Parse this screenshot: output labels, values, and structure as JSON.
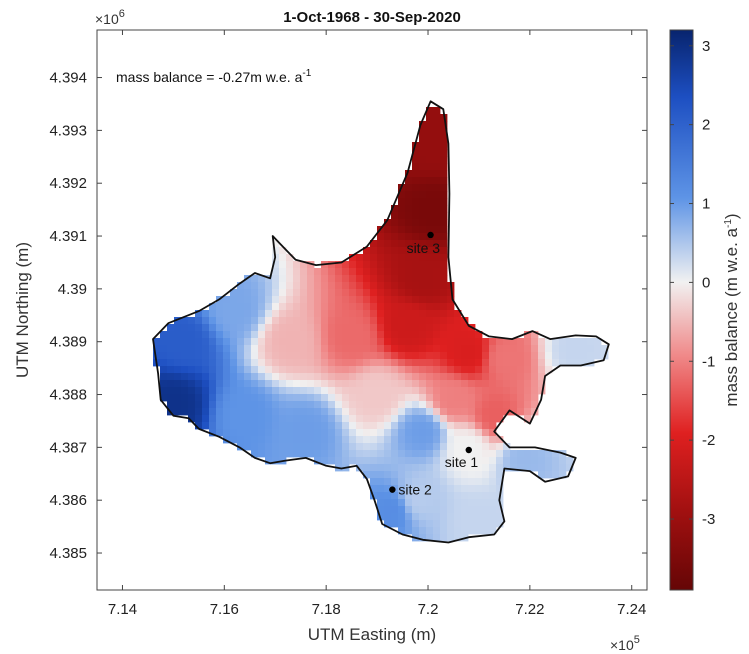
{
  "chart_data": {
    "type": "heatmap",
    "title": "1-Oct-1968 - 30-Sep-2020",
    "xlabel": "UTM Easting (m)",
    "ylabel": "UTM Northing (m)",
    "x_multiplier": "×10",
    "x_multiplier_exp": "5",
    "y_multiplier": "×10",
    "y_multiplier_exp": "6",
    "xlim": [
      7.135,
      7.243
    ],
    "ylim": [
      4.3843,
      4.3949
    ],
    "x_ticks": [
      {
        "value": 7.14,
        "label": "7.14"
      },
      {
        "value": 7.16,
        "label": "7.16"
      },
      {
        "value": 7.18,
        "label": "7.18"
      },
      {
        "value": 7.2,
        "label": "7.2"
      },
      {
        "value": 7.22,
        "label": "7.22"
      },
      {
        "value": 7.24,
        "label": "7.24"
      }
    ],
    "y_ticks": [
      {
        "value": 4.385,
        "label": "4.385"
      },
      {
        "value": 4.386,
        "label": "4.386"
      },
      {
        "value": 4.387,
        "label": "4.387"
      },
      {
        "value": 4.388,
        "label": "4.388"
      },
      {
        "value": 4.389,
        "label": "4.389"
      },
      {
        "value": 4.39,
        "label": "4.39"
      },
      {
        "value": 4.391,
        "label": "4.391"
      },
      {
        "value": 4.392,
        "label": "4.392"
      },
      {
        "value": 4.393,
        "label": "4.393"
      },
      {
        "value": 4.394,
        "label": "4.394"
      }
    ],
    "annotation": {
      "text": "mass balance = -0.27m w.e. a",
      "superscript": "-1"
    },
    "colorbar": {
      "label": "mass balance (m w.e. a",
      "label_superscript": "-1",
      "label_close": ")",
      "range": [
        -3.9,
        3.2
      ],
      "ticks": [
        {
          "value": 3,
          "label": "3"
        },
        {
          "value": 2,
          "label": "2"
        },
        {
          "value": 1,
          "label": "1"
        },
        {
          "value": 0,
          "label": "0"
        },
        {
          "value": -1,
          "label": "-1"
        },
        {
          "value": -2,
          "label": "-2"
        },
        {
          "value": -3,
          "label": "-3"
        }
      ],
      "colors": [
        "#6e0a0a",
        "#d11e1e",
        "#f3f3f3",
        "#2a6fd8",
        "#08246e"
      ]
    },
    "sites": [
      {
        "name": "site 1",
        "x": 7.208,
        "y": 4.38695
      },
      {
        "name": "site 2",
        "x": 7.193,
        "y": 4.3862
      },
      {
        "name": "site 3",
        "x": 7.2005,
        "y": 4.39102
      }
    ],
    "grid": false,
    "glacier_outline": [
      [
        7.146,
        4.38905
      ],
      [
        7.149,
        4.38935
      ],
      [
        7.155,
        4.38958
      ],
      [
        7.159,
        4.3898
      ],
      [
        7.163,
        4.3901
      ],
      [
        7.166,
        4.3903
      ],
      [
        7.169,
        4.3902
      ],
      [
        7.17,
        4.3906
      ],
      [
        7.1695,
        4.391
      ],
      [
        7.171,
        4.39085
      ],
      [
        7.174,
        4.39055
      ],
      [
        7.178,
        4.39045
      ],
      [
        7.183,
        4.3905
      ],
      [
        7.188,
        4.3908
      ],
      [
        7.192,
        4.3913
      ],
      [
        7.196,
        4.3922
      ],
      [
        7.1985,
        4.3931
      ],
      [
        7.2005,
        4.39355
      ],
      [
        7.203,
        4.3934
      ],
      [
        7.204,
        4.39275
      ],
      [
        7.2042,
        4.3918
      ],
      [
        7.204,
        4.3906
      ],
      [
        7.2048,
        4.3898
      ],
      [
        7.208,
        4.3893
      ],
      [
        7.212,
        4.3891
      ],
      [
        7.2165,
        4.38905
      ],
      [
        7.2205,
        4.3892
      ],
      [
        7.224,
        4.38905
      ],
      [
        7.229,
        4.38912
      ],
      [
        7.233,
        4.3891
      ],
      [
        7.2355,
        4.38895
      ],
      [
        7.2345,
        4.38865
      ],
      [
        7.23,
        4.38855
      ],
      [
        7.226,
        4.38855
      ],
      [
        7.223,
        4.38835
      ],
      [
        7.2222,
        4.3879
      ],
      [
        7.22,
        4.38745
      ],
      [
        7.216,
        4.3877
      ],
      [
        7.213,
        4.3873
      ],
      [
        7.216,
        4.387
      ],
      [
        7.221,
        4.387
      ],
      [
        7.226,
        4.3869
      ],
      [
        7.229,
        4.3868
      ],
      [
        7.2275,
        4.38645
      ],
      [
        7.223,
        4.38635
      ],
      [
        7.22,
        4.38655
      ],
      [
        7.215,
        4.3866
      ],
      [
        7.214,
        4.386
      ],
      [
        7.215,
        4.3856
      ],
      [
        7.213,
        4.38535
      ],
      [
        7.208,
        4.3853
      ],
      [
        7.204,
        4.3852
      ],
      [
        7.199,
        4.38525
      ],
      [
        7.195,
        4.38535
      ],
      [
        7.191,
        4.38555
      ],
      [
        7.1895,
        4.386
      ],
      [
        7.188,
        4.3864
      ],
      [
        7.186,
        4.38665
      ],
      [
        7.183,
        4.3866
      ],
      [
        7.18,
        4.38665
      ],
      [
        7.176,
        4.3868
      ],
      [
        7.172,
        4.38675
      ],
      [
        7.169,
        4.3867
      ],
      [
        7.166,
        4.3868
      ],
      [
        7.163,
        4.387
      ],
      [
        7.159,
        4.3872
      ],
      [
        7.155,
        4.38735
      ],
      [
        7.153,
        4.38755
      ],
      [
        7.15,
        4.3876
      ],
      [
        7.1475,
        4.3879
      ],
      [
        7.147,
        4.3884
      ]
    ],
    "value_field_description_anchors": [
      {
        "x": 7.201,
        "y": 4.3915,
        "value": -3.6
      },
      {
        "x": 7.201,
        "y": 4.3927,
        "value": -3.2
      },
      {
        "x": 7.199,
        "y": 4.3902,
        "value": -2.9
      },
      {
        "x": 7.196,
        "y": 4.3893,
        "value": -2.3
      },
      {
        "x": 7.208,
        "y": 4.3888,
        "value": -2.1
      },
      {
        "x": 7.185,
        "y": 4.3891,
        "value": -1.3
      },
      {
        "x": 7.215,
        "y": 4.3887,
        "value": -1.2
      },
      {
        "x": 7.229,
        "y": 4.38885,
        "value": 0.3
      },
      {
        "x": 7.173,
        "y": 4.389,
        "value": -0.6
      },
      {
        "x": 7.162,
        "y": 4.3896,
        "value": 0.8
      },
      {
        "x": 7.152,
        "y": 4.389,
        "value": 1.8
      },
      {
        "x": 7.15,
        "y": 4.3878,
        "value": 2.8
      },
      {
        "x": 7.164,
        "y": 4.3876,
        "value": 1.0
      },
      {
        "x": 7.176,
        "y": 4.3873,
        "value": 0.9
      },
      {
        "x": 7.19,
        "y": 4.388,
        "value": -0.4
      },
      {
        "x": 7.205,
        "y": 4.3879,
        "value": -1.1
      },
      {
        "x": 7.213,
        "y": 4.3876,
        "value": -1.4
      },
      {
        "x": 7.208,
        "y": 4.387,
        "value": 0.0
      },
      {
        "x": 7.199,
        "y": 4.3873,
        "value": 0.9
      },
      {
        "x": 7.198,
        "y": 4.386,
        "value": 0.4
      },
      {
        "x": 7.193,
        "y": 4.3858,
        "value": 1.1
      },
      {
        "x": 7.21,
        "y": 4.3856,
        "value": 0.3
      },
      {
        "x": 7.219,
        "y": 4.3868,
        "value": 0.6
      }
    ]
  }
}
